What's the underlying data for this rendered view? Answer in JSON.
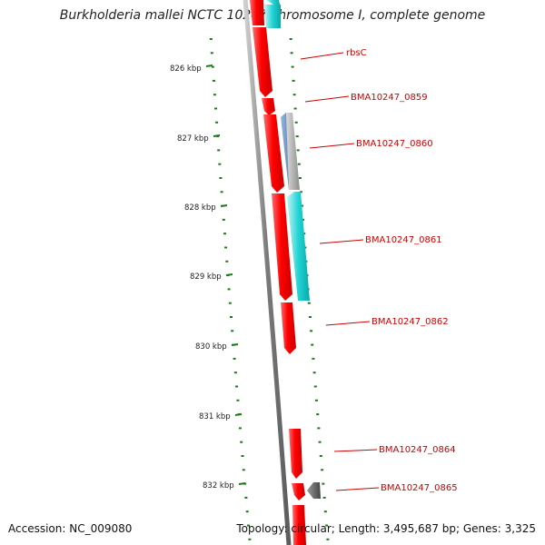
{
  "map": {
    "title": "Burkholderia mallei NCTC 10247 chromosome I, complete genome",
    "accession_text": "Accession: NC_009080",
    "summary_text": "Topology: circular; Length: 3,495,687 bp; Genes: 3,325"
  },
  "kbp_ticks": [
    "826 kbp",
    "827 kbp",
    "828 kbp",
    "829 kbp",
    "830 kbp",
    "831 kbp",
    "832 kbp"
  ],
  "gene_labels": [
    "rbsC",
    "BMA10247_0859",
    "BMA10247_0860",
    "BMA10247_0861",
    "BMA10247_0862",
    "BMA10247_0864",
    "BMA10247_0865"
  ],
  "colors": {
    "cds_forward": "#ff0000",
    "cds_reverse_cyan": "#21d4d4",
    "cds_blue": "#5a7fb0",
    "cds_gray": "#9a9a9a",
    "backbone": "#7a7a7a",
    "tick": "#1c7a1c",
    "label": "#cc0000"
  }
}
